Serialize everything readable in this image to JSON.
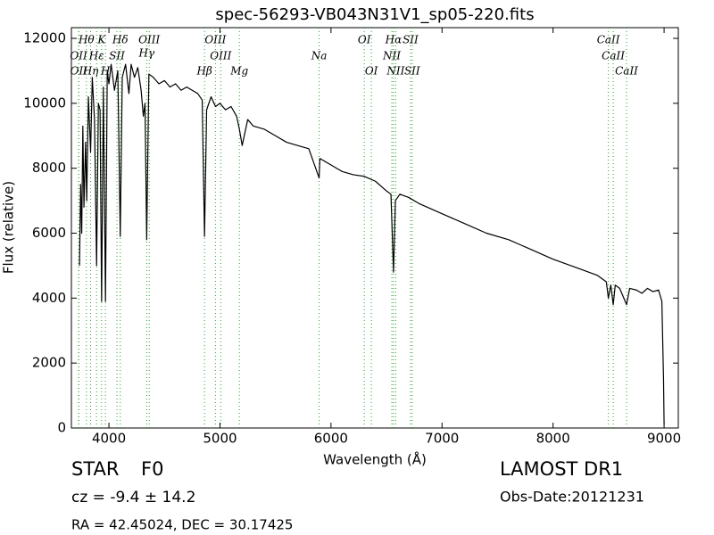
{
  "chart_data": {
    "type": "line",
    "title": "spec-56293-VB043N31V1_sp05-220.fits",
    "x_label": "Wavelength (Å)",
    "y_label": "Flux (relative)",
    "xlim": [
      3662,
      9128
    ],
    "ylim": [
      0,
      12330
    ],
    "xticks": [
      4000,
      5000,
      6000,
      7000,
      8000,
      9000
    ],
    "yticks": [
      0,
      2000,
      4000,
      6000,
      8000,
      10000,
      12000
    ],
    "color": "#000000",
    "line_color": "#2ca02c",
    "x": [
      3735,
      3745,
      3755,
      3765,
      3775,
      3790,
      3800,
      3815,
      3835,
      3850,
      3870,
      3889,
      3905,
      3920,
      3934,
      3950,
      3969,
      3985,
      4000,
      4020,
      4050,
      4080,
      4102,
      4120,
      4150,
      4180,
      4200,
      4230,
      4260,
      4290,
      4310,
      4325,
      4340,
      4360,
      4400,
      4450,
      4500,
      4550,
      4600,
      4650,
      4700,
      4750,
      4800,
      4840,
      4861,
      4880,
      4920,
      4960,
      5000,
      5050,
      5100,
      5150,
      5175,
      5200,
      5250,
      5300,
      5400,
      5500,
      5600,
      5700,
      5800,
      5893,
      5900,
      6000,
      6100,
      6200,
      6300,
      6400,
      6500,
      6540,
      6563,
      6580,
      6620,
      6700,
      6800,
      6900,
      7000,
      7200,
      7400,
      7600,
      7700,
      7800,
      7900,
      8000,
      8200,
      8400,
      8480,
      8498,
      8520,
      8542,
      8560,
      8600,
      8662,
      8690,
      8750,
      8800,
      8850,
      8900,
      8950,
      8980,
      8995,
      9000
    ],
    "values": [
      5000,
      7500,
      6000,
      9300,
      6800,
      8800,
      7000,
      10200,
      8500,
      10800,
      9500,
      5000,
      10000,
      9800,
      3900,
      10500,
      3900,
      11000,
      10600,
      11200,
      10400,
      11000,
      5900,
      10800,
      11200,
      10300,
      11200,
      10800,
      11100,
      10400,
      9600,
      10000,
      5800,
      10900,
      10800,
      10600,
      10700,
      10500,
      10600,
      10400,
      10500,
      10400,
      10300,
      10100,
      5900,
      9800,
      10200,
      9900,
      10000,
      9800,
      9900,
      9600,
      9200,
      8700,
      9500,
      9300,
      9200,
      9000,
      8800,
      8700,
      8600,
      7700,
      8300,
      8100,
      7900,
      7800,
      7750,
      7600,
      7300,
      7200,
      4800,
      7000,
      7200,
      7100,
      6900,
      6750,
      6600,
      6300,
      6000,
      5800,
      5650,
      5500,
      5350,
      5200,
      4950,
      4700,
      4500,
      4000,
      4400,
      3800,
      4400,
      4300,
      3800,
      4300,
      4250,
      4150,
      4300,
      4200,
      4250,
      3900,
      1500,
      100
    ],
    "lines": [
      {
        "label": "OII",
        "x": 3727
      },
      {
        "label": "OII",
        "x": 3729
      },
      {
        "label": "Hθ",
        "x": 3797
      },
      {
        "label": "Hη",
        "x": 3835
      },
      {
        "label": "Hε",
        "x": 3889
      },
      {
        "label": "K",
        "x": 3934
      },
      {
        "label": "H",
        "x": 3969
      },
      {
        "label": "SII",
        "x": 4072
      },
      {
        "label": "Hδ",
        "x": 4102
      },
      {
        "label": "Hγ",
        "x": 4340
      },
      {
        "label": "OIII",
        "x": 4363
      },
      {
        "label": "Hβ",
        "x": 4861
      },
      {
        "label": "OIII",
        "x": 4959
      },
      {
        "label": "OIII",
        "x": 5007
      },
      {
        "label": "Mg",
        "x": 5175
      },
      {
        "label": "Na",
        "x": 5893
      },
      {
        "label": "OI",
        "x": 6300
      },
      {
        "label": "OI",
        "x": 6364
      },
      {
        "label": "NII",
        "x": 6548
      },
      {
        "label": "Hα",
        "x": 6563
      },
      {
        "label": "NII",
        "x": 6583
      },
      {
        "label": "SII",
        "x": 6716
      },
      {
        "label": "SII",
        "x": 6731
      },
      {
        "label": "CaII",
        "x": 8498
      },
      {
        "label": "CaII",
        "x": 8542
      },
      {
        "label": "CaII",
        "x": 8662
      }
    ],
    "annotations": [
      "STAR",
      "F0",
      "cz = -9.4 ± 14.2",
      "RA = 42.45024, DEC = 30.17425",
      "LAMOST DR1",
      "Obs-Date:20121231"
    ]
  }
}
